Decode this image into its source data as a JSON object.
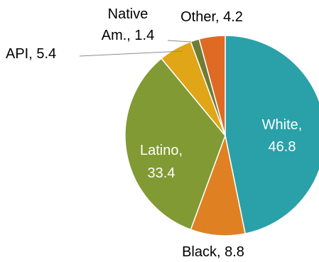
{
  "chart_data": {
    "type": "pie",
    "title": "",
    "slices": [
      {
        "label": "White",
        "value": 46.8,
        "display_value": "46.8",
        "color": "#2aa0a8",
        "text_color": "#ffffff",
        "label_mode": "inside"
      },
      {
        "label": "Black",
        "value": 8.8,
        "display_value": "8.8",
        "color": "#df8123",
        "text_color": "#000000",
        "label_mode": "outside"
      },
      {
        "label": "Latino",
        "value": 33.4,
        "display_value": "33.4",
        "color": "#819a33",
        "text_color": "#ffffff",
        "label_mode": "inside"
      },
      {
        "label": "API",
        "value": 5.4,
        "display_value": "5.4",
        "color": "#e0a617",
        "text_color": "#000000",
        "label_mode": "outside"
      },
      {
        "label": "Native Am.",
        "value": 1.4,
        "display_value": "1.4",
        "color": "#6e7c35",
        "text_color": "#000000",
        "label_mode": "outside"
      },
      {
        "label": "Other",
        "value": 4.2,
        "display_value": "4.2",
        "color": "#df6a24",
        "text_color": "#000000",
        "label_mode": "outside"
      }
    ],
    "leader_line_color": "#8c8c8c",
    "start_angle": "12 o'clock",
    "direction": "clockwise"
  }
}
